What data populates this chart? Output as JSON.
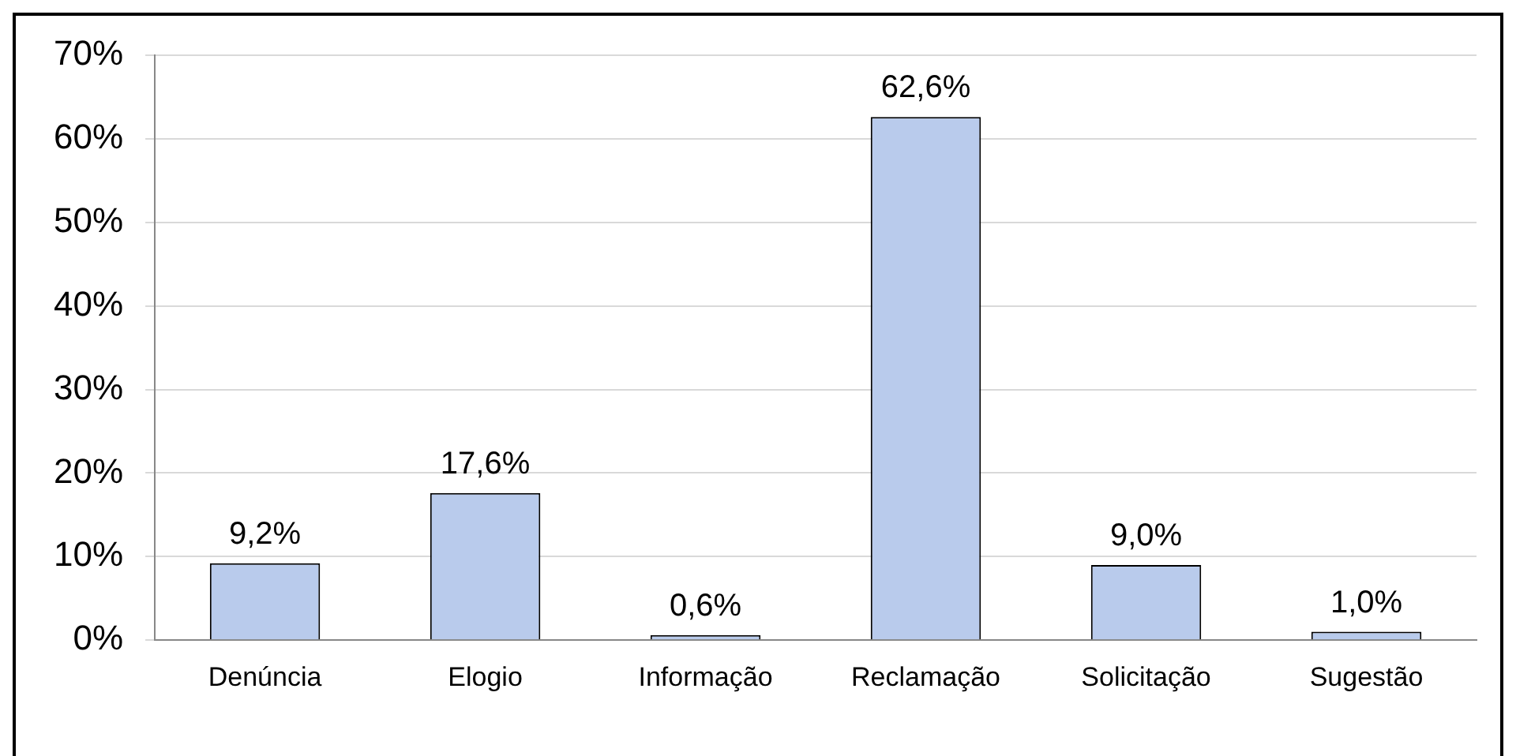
{
  "chart_data": {
    "type": "bar",
    "categories": [
      "Denúncia",
      "Elogio",
      "Informação",
      "Reclamação",
      "Solicitação",
      "Sugestão"
    ],
    "values": [
      9.2,
      17.6,
      0.6,
      62.6,
      9.0,
      1.0
    ],
    "value_labels": [
      "9,2%",
      "17,6%",
      "0,6%",
      "62,6%",
      "9,0%",
      "1,0%"
    ],
    "color": "#b9cbec",
    "ylim": [
      0,
      70
    ],
    "yticks": [
      {
        "value": 0,
        "label": "0%"
      },
      {
        "value": 10,
        "label": "10%"
      },
      {
        "value": 20,
        "label": "20%"
      },
      {
        "value": 30,
        "label": "30%"
      },
      {
        "value": 40,
        "label": "40%"
      },
      {
        "value": 50,
        "label": "50%"
      },
      {
        "value": 60,
        "label": "60%"
      },
      {
        "value": 70,
        "label": "70%"
      }
    ],
    "grid": "y",
    "legend": false
  }
}
